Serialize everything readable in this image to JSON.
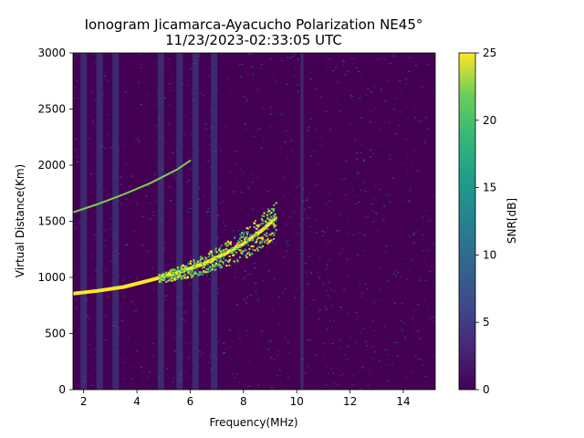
{
  "chart_data": {
    "type": "heatmap",
    "title": "Ionogram Jicamarca-Ayacucho Polarization NE45°",
    "subtitle": "11/23/2023-02:33:05 UTC",
    "xlabel": "Frequency(MHz)",
    "ylabel": "Virtual Distance(Km)",
    "xlim": [
      1.6,
      15.2
    ],
    "ylim": [
      0,
      3000
    ],
    "xticks": [
      "2",
      "4",
      "6",
      "8",
      "10",
      "12",
      "14"
    ],
    "yticks": [
      "0",
      "500",
      "1000",
      "1500",
      "2000",
      "2500",
      "3000"
    ],
    "colorbar": {
      "label": "SNR[dB]",
      "range": [
        0,
        25
      ],
      "ticks": [
        "0",
        "5",
        "10",
        "15",
        "20",
        "25"
      ],
      "colormap": "viridis"
    },
    "traces": [
      {
        "description": "main echo trace (ordinary ray)",
        "points": [
          [
            1.6,
            855
          ],
          [
            2.5,
            880
          ],
          [
            3.5,
            915
          ],
          [
            4.5,
            975
          ],
          [
            5.5,
            1040
          ],
          [
            6.5,
            1120
          ],
          [
            7.3,
            1210
          ],
          [
            8.0,
            1300
          ],
          [
            8.7,
            1420
          ],
          [
            9.2,
            1530
          ]
        ],
        "snr_db": 25
      },
      {
        "description": "multi-hop echo",
        "points": [
          [
            1.6,
            1580
          ],
          [
            2.5,
            1650
          ],
          [
            3.5,
            1740
          ],
          [
            4.5,
            1840
          ],
          [
            5.5,
            1960
          ],
          [
            6.0,
            2040
          ]
        ],
        "snr_db": 18
      }
    ],
    "vertical_bands_mhz": [
      2.0,
      2.6,
      3.2,
      4.9,
      5.6,
      6.2,
      6.9,
      10.2
    ]
  },
  "colors": {
    "background": "#440154",
    "low": "#472c7a",
    "mid": "#21918c",
    "high": "#fde725"
  }
}
